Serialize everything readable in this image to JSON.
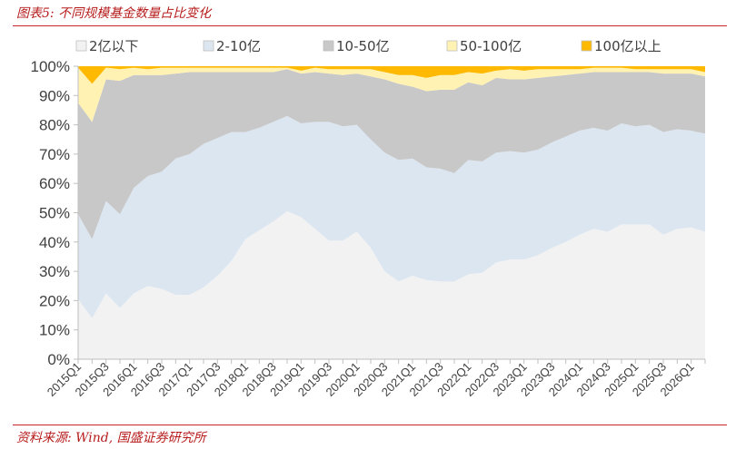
{
  "title": "图表5:  不同规模基金数量占比变化",
  "source": "资料来源:  Wind,  国盛证券研究所",
  "chart_data": {
    "type": "area",
    "stacked": true,
    "title": "图表5:  不同规模基金数量占比变化",
    "xlabel": "",
    "ylabel": "",
    "ylim": [
      0,
      100
    ],
    "yticks": [
      "0%",
      "10%",
      "20%",
      "30%",
      "40%",
      "50%",
      "60%",
      "70%",
      "80%",
      "90%",
      "100%"
    ],
    "x": [
      "2015Q1",
      "2015Q2",
      "2015Q3",
      "2015Q4",
      "2016Q1",
      "2016Q2",
      "2016Q3",
      "2016Q4",
      "2017Q1",
      "2017Q2",
      "2017Q3",
      "2017Q4",
      "2018Q1",
      "2018Q2",
      "2018Q3",
      "2018Q4",
      "2019Q1",
      "2019Q2",
      "2019Q3",
      "2019Q4",
      "2020Q1",
      "2020Q2",
      "2020Q3",
      "2020Q4",
      "2021Q1",
      "2021Q2",
      "2021Q3",
      "2021Q4",
      "2022Q1",
      "2022Q2",
      "2022Q3",
      "2022Q4",
      "2023Q1",
      "2023Q2",
      "2023Q3",
      "2023Q4",
      "2024Q1",
      "2024Q2",
      "2024Q3",
      "2024Q4",
      "2025Q1",
      "2025Q2",
      "2025Q3",
      "2025Q4",
      "2026Q1",
      "2026Q2"
    ],
    "xtick_labels": [
      "2015Q1",
      "",
      "2015Q3",
      "",
      "2016Q1",
      "",
      "2016Q3",
      "",
      "2017Q1",
      "",
      "2017Q3",
      "",
      "2018Q1",
      "",
      "2018Q3",
      "",
      "2019Q1",
      "",
      "2019Q3",
      "",
      "2020Q1",
      "",
      "2020Q3",
      "",
      "2021Q1",
      "",
      "2021Q3",
      "",
      "2022Q1",
      "",
      "2022Q3",
      "",
      "2023Q1",
      "",
      "2023Q3",
      "",
      "2024Q1",
      "",
      "2024Q3",
      "",
      "2025Q1",
      "",
      "2025Q3",
      "",
      "2026Q1",
      ""
    ],
    "series": [
      {
        "name": "2亿以下",
        "color": "#f2f2f2",
        "values": [
          20.5,
          14,
          22.5,
          17.5,
          22.5,
          25,
          24,
          22,
          22,
          24.5,
          28.5,
          33.5,
          41,
          44,
          47,
          50.5,
          48.5,
          44.5,
          40.5,
          40.5,
          43.5,
          38,
          30,
          26.5,
          28.5,
          27,
          26.5,
          26.5,
          29,
          29.5,
          33,
          34,
          34,
          35.5,
          38,
          40,
          42.5,
          44.5,
          43.5,
          46,
          46,
          46,
          42.5,
          44.5,
          45,
          43.5
        ]
      },
      {
        "name": "2-10亿",
        "color": "#dce6f1",
        "values": [
          29,
          27,
          31.5,
          32,
          36,
          37.5,
          40,
          46.5,
          48,
          49,
          47,
          44,
          36.5,
          35,
          34,
          32.5,
          32,
          36.5,
          40.5,
          39,
          36.5,
          37,
          40.5,
          41.5,
          40,
          38.5,
          38.5,
          37,
          39,
          38,
          37.5,
          37,
          36.5,
          36,
          36,
          36,
          35.5,
          34.5,
          34.5,
          34.5,
          33.5,
          34,
          35,
          34,
          33,
          33.5
        ]
      },
      {
        "name": "10-50亿",
        "color": "#c8c8c8",
        "values": [
          38,
          40,
          41.5,
          45.5,
          38.5,
          34.5,
          33,
          29,
          28,
          24.5,
          22.5,
          20.5,
          20.5,
          19,
          17,
          16,
          17,
          17,
          16.5,
          17.5,
          17.5,
          21.5,
          25,
          26,
          24.5,
          26,
          27,
          28.5,
          26.5,
          26,
          25.5,
          24.5,
          25,
          24.5,
          22.5,
          21,
          19.5,
          19,
          20,
          17.5,
          18.5,
          18,
          20,
          19,
          19.5,
          19.5
        ]
      },
      {
        "name": "50-100亿",
        "color": "#fff2b3",
        "values": [
          12,
          13,
          4,
          4,
          2.5,
          2,
          2.5,
          2,
          1.5,
          1.5,
          1.5,
          1.5,
          1.5,
          1.5,
          1.5,
          0.5,
          1,
          1.5,
          1.5,
          2,
          1.5,
          2.5,
          2.5,
          3,
          4,
          4.5,
          5,
          5,
          3.5,
          4,
          2.5,
          3.5,
          3,
          3,
          2.5,
          2,
          1.5,
          1.5,
          1.5,
          1.5,
          1,
          1,
          1.5,
          1.5,
          1.5,
          1.5
        ]
      },
      {
        "name": "100亿以上",
        "color": "#ffb900",
        "values": [
          0.5,
          6,
          0.5,
          1,
          0.5,
          1,
          0.5,
          0.5,
          0.5,
          0.5,
          0.5,
          0.5,
          0.5,
          0.5,
          0.5,
          0.5,
          1.5,
          0.5,
          1,
          1,
          1,
          1,
          2,
          3,
          3,
          4,
          3,
          3,
          2,
          2.5,
          1.5,
          1,
          1.5,
          1,
          1,
          1,
          1,
          0.5,
          0.5,
          0.5,
          1,
          1,
          1,
          1,
          1,
          2
        ]
      }
    ],
    "legend": {
      "position": "top",
      "entries": [
        "2亿以下",
        "2-10亿",
        "10-50亿",
        "50-100亿",
        "100亿以上"
      ]
    },
    "grid": false
  }
}
